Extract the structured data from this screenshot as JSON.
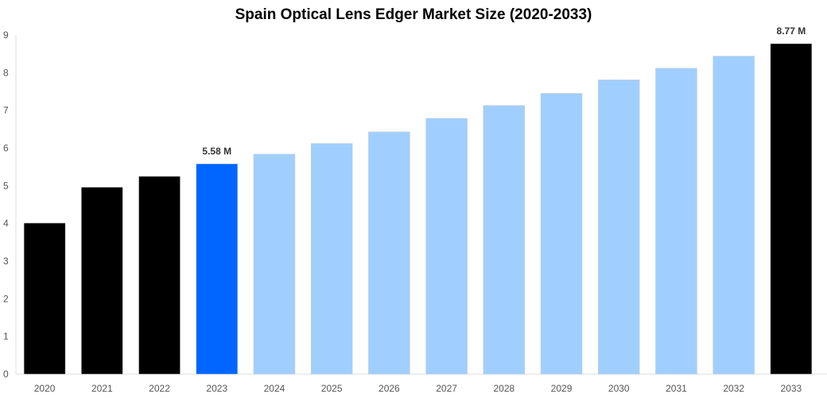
{
  "chart_data": {
    "type": "bar",
    "title": "Spain Optical Lens Edger Market Size (2020-2033)",
    "xlabel": "",
    "ylabel": "",
    "ylim": [
      0,
      9
    ],
    "yticks": [
      "0",
      "1",
      "2",
      "3",
      "4",
      "5",
      "6",
      "7",
      "8",
      "9"
    ],
    "grid": false,
    "categories": [
      "2020",
      "2021",
      "2022",
      "2023",
      "2024",
      "2025",
      "2026",
      "2027",
      "2028",
      "2029",
      "2030",
      "2031",
      "2032",
      "2033"
    ],
    "values": [
      4.01,
      4.96,
      5.25,
      5.58,
      5.84,
      6.12,
      6.43,
      6.79,
      7.13,
      7.45,
      7.81,
      8.12,
      8.44,
      8.77
    ],
    "bar_colors": [
      "#000000",
      "#000000",
      "#000000",
      "#0066ff",
      "#a0cfff",
      "#a0cfff",
      "#a0cfff",
      "#a0cfff",
      "#a0cfff",
      "#a0cfff",
      "#a0cfff",
      "#a0cfff",
      "#a0cfff",
      "#000000"
    ],
    "data_labels": [
      {
        "category": "2023",
        "text": "5.58 M"
      },
      {
        "category": "2033",
        "text": "8.77 M"
      }
    ]
  }
}
